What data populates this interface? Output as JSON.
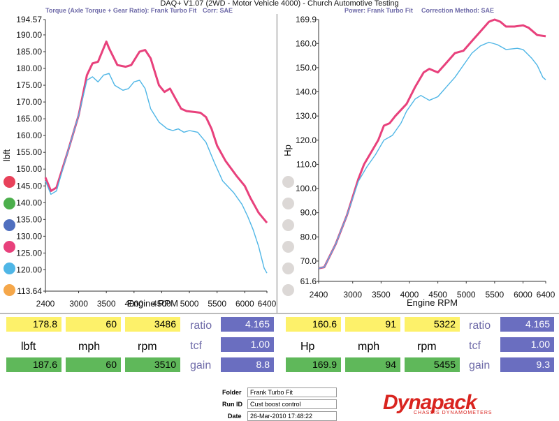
{
  "header": {
    "title": "DAQ+ V1.07 (2WD - Motor Vehicle 4000) - Church Automotive Testing",
    "left_subtitle": "Torque (Axle Torque + Gear Ratio): Frank Turbo Fit",
    "left_corr": "Corr: SAE",
    "right_subtitle": "Power: Frank Turbo Fit",
    "right_corr": "Correction Method: SAE"
  },
  "colors": {
    "pink": "#e8417c",
    "cyan": "#4fb6e6",
    "yellow": "#fdf16a",
    "green": "#5fb85a",
    "blue": "#6a6ec0",
    "logo_red": "#d9241f"
  },
  "legend_dots": {
    "left": [
      "#e8415a",
      "#4caf4c",
      "#4f6fbf",
      "#e8417c",
      "#4fb6e6",
      "#f5a74a"
    ],
    "right": [
      "#dcd8d6",
      "#dcd8d6",
      "#dcd8d6",
      "#dcd8d6",
      "#dcd8d6",
      "#dcd8d6"
    ]
  },
  "chart_data": [
    {
      "type": "line",
      "title": "Torque (Axle Torque + Gear Ratio): Frank Turbo Fit",
      "xlabel": "Engine RPM",
      "ylabel": "lbft",
      "xlim": [
        2400,
        6400
      ],
      "ylim": [
        113.64,
        194.57
      ],
      "x_ticks": [
        "2400",
        "3000",
        "3500",
        "4000",
        "4500",
        "5000",
        "5500",
        "6000",
        "6400"
      ],
      "x_tick_values": [
        2400,
        3000,
        3500,
        4000,
        4500,
        5000,
        5500,
        6000,
        6400
      ],
      "y_ticks": [
        "194.57",
        "190.00",
        "185.00",
        "180.00",
        "175.00",
        "170.00",
        "165.00",
        "160.00",
        "155.00",
        "150.00",
        "145.00",
        "140.00",
        "135.00",
        "130.00",
        "125.00",
        "120.00",
        "113.64"
      ],
      "y_tick_values": [
        194.57,
        190,
        185,
        180,
        175,
        170,
        165,
        160,
        155,
        150,
        145,
        140,
        135,
        130,
        125,
        120,
        113.64
      ],
      "series": [
        {
          "color": "#e8417c",
          "points": [
            [
              2400,
              147.5
            ],
            [
              2500,
              143.5
            ],
            [
              2600,
              144.5
            ],
            [
              2800,
              155
            ],
            [
              3000,
              166
            ],
            [
              3150,
              178
            ],
            [
              3250,
              181.5
            ],
            [
              3350,
              182
            ],
            [
              3450,
              186
            ],
            [
              3500,
              188
            ],
            [
              3550,
              186
            ],
            [
              3700,
              181
            ],
            [
              3850,
              180.5
            ],
            [
              3950,
              181
            ],
            [
              4100,
              185
            ],
            [
              4200,
              185.5
            ],
            [
              4300,
              183
            ],
            [
              4450,
              175
            ],
            [
              4550,
              173
            ],
            [
              4650,
              174
            ],
            [
              4750,
              171
            ],
            [
              4850,
              168
            ],
            [
              4950,
              167.3
            ],
            [
              5100,
              167
            ],
            [
              5200,
              166.8
            ],
            [
              5300,
              165.5
            ],
            [
              5400,
              162
            ],
            [
              5500,
              157
            ],
            [
              5650,
              152.5
            ],
            [
              5850,
              148
            ],
            [
              6000,
              145
            ],
            [
              6100,
              141.5
            ],
            [
              6250,
              137
            ],
            [
              6400,
              134
            ]
          ]
        },
        {
          "color": "#4fb6e6",
          "points": [
            [
              2400,
              146.5
            ],
            [
              2500,
              142.5
            ],
            [
              2600,
              143.5
            ],
            [
              2800,
              155
            ],
            [
              3000,
              166
            ],
            [
              3150,
              176.5
            ],
            [
              3250,
              177.5
            ],
            [
              3350,
              176
            ],
            [
              3450,
              178
            ],
            [
              3550,
              178.5
            ],
            [
              3650,
              175
            ],
            [
              3800,
              173.5
            ],
            [
              3900,
              174
            ],
            [
              4000,
              176
            ],
            [
              4100,
              176.5
            ],
            [
              4200,
              174
            ],
            [
              4300,
              168
            ],
            [
              4450,
              164
            ],
            [
              4600,
              162
            ],
            [
              4700,
              161.5
            ],
            [
              4800,
              162
            ],
            [
              4900,
              161
            ],
            [
              5000,
              161.5
            ],
            [
              5150,
              161
            ],
            [
              5300,
              158
            ],
            [
              5450,
              152
            ],
            [
              5600,
              146.5
            ],
            [
              5800,
              143
            ],
            [
              5950,
              139.5
            ],
            [
              6050,
              136
            ],
            [
              6150,
              132
            ],
            [
              6250,
              127
            ],
            [
              6350,
              120.5
            ],
            [
              6400,
              119
            ]
          ]
        }
      ]
    },
    {
      "type": "line",
      "title": "Power: Frank Turbo Fit",
      "xlabel": "Engine RPM",
      "ylabel": "Hp",
      "xlim": [
        2400,
        6400
      ],
      "ylim": [
        61.6,
        169.9
      ],
      "x_ticks": [
        "2400",
        "3000",
        "3500",
        "4000",
        "4500",
        "5000",
        "5500",
        "6000",
        "6400"
      ],
      "x_tick_values": [
        2400,
        3000,
        3500,
        4000,
        4500,
        5000,
        5500,
        6000,
        6400
      ],
      "y_ticks": [
        "169.9",
        "160.0",
        "150.0",
        "140.0",
        "130.0",
        "120.0",
        "110.0",
        "100.0",
        "90.0",
        "80.0",
        "70.0",
        "61.6"
      ],
      "y_tick_values": [
        169.9,
        160,
        150,
        140,
        130,
        120,
        110,
        100,
        90,
        80,
        70,
        61.6
      ],
      "series": [
        {
          "color": "#e8417c",
          "points": [
            [
              2400,
              67
            ],
            [
              2500,
              67.5
            ],
            [
              2700,
              77
            ],
            [
              2900,
              89
            ],
            [
              3100,
              104
            ],
            [
              3200,
              110
            ],
            [
              3350,
              116
            ],
            [
              3450,
              120
            ],
            [
              3550,
              126
            ],
            [
              3650,
              127
            ],
            [
              3750,
              130
            ],
            [
              3950,
              135
            ],
            [
              4100,
              142
            ],
            [
              4250,
              148
            ],
            [
              4350,
              149.5
            ],
            [
              4500,
              148
            ],
            [
              4650,
              152
            ],
            [
              4800,
              156
            ],
            [
              4950,
              157
            ],
            [
              5100,
              161
            ],
            [
              5250,
              165
            ],
            [
              5400,
              169
            ],
            [
              5500,
              169.9
            ],
            [
              5600,
              169
            ],
            [
              5700,
              167
            ],
            [
              5850,
              167
            ],
            [
              6000,
              167.5
            ],
            [
              6100,
              166.5
            ],
            [
              6250,
              163.5
            ],
            [
              6400,
              163
            ]
          ]
        },
        {
          "color": "#4fb6e6",
          "points": [
            [
              2400,
              67
            ],
            [
              2500,
              67.5
            ],
            [
              2700,
              77
            ],
            [
              2900,
              89
            ],
            [
              3100,
              103
            ],
            [
              3250,
              109
            ],
            [
              3400,
              114
            ],
            [
              3550,
              120
            ],
            [
              3700,
              122
            ],
            [
              3850,
              127
            ],
            [
              3950,
              132
            ],
            [
              4100,
              137
            ],
            [
              4200,
              138.5
            ],
            [
              4350,
              136.5
            ],
            [
              4500,
              138
            ],
            [
              4650,
              142
            ],
            [
              4800,
              146
            ],
            [
              4950,
              151
            ],
            [
              5100,
              156
            ],
            [
              5250,
              159
            ],
            [
              5400,
              160.5
            ],
            [
              5550,
              159.5
            ],
            [
              5700,
              157.5
            ],
            [
              5900,
              158
            ],
            [
              6000,
              157.5
            ],
            [
              6150,
              154
            ],
            [
              6250,
              151
            ],
            [
              6350,
              146
            ],
            [
              6400,
              145
            ]
          ]
        }
      ]
    }
  ],
  "readouts": {
    "left": {
      "row1": [
        "178.8",
        "60",
        "3486"
      ],
      "units": [
        "lbft",
        "mph",
        "rpm"
      ],
      "row3": [
        "187.6",
        "60",
        "3510"
      ],
      "params": [
        {
          "label": "ratio",
          "value": "4.165"
        },
        {
          "label": "tcf",
          "value": "1.00"
        },
        {
          "label": "gain",
          "value": "8.8"
        }
      ]
    },
    "right": {
      "row1": [
        "160.6",
        "91",
        "5322"
      ],
      "units": [
        "Hp",
        "mph",
        "rpm"
      ],
      "row3": [
        "169.9",
        "94",
        "5455"
      ],
      "params": [
        {
          "label": "ratio",
          "value": "4.165"
        },
        {
          "label": "tcf",
          "value": "1.00"
        },
        {
          "label": "gain",
          "value": "9.3"
        }
      ]
    }
  },
  "info": {
    "folder_label": "Folder",
    "folder_value": "Frank Turbo Fit",
    "runid_label": "Run ID",
    "runid_value": "Cust boost control",
    "date_label": "Date",
    "date_value": "26-Mar-2010 17:48:22"
  },
  "logo": {
    "text": "Dynapack",
    "subtext": "CHASSIS DYNAMOMETERS"
  }
}
